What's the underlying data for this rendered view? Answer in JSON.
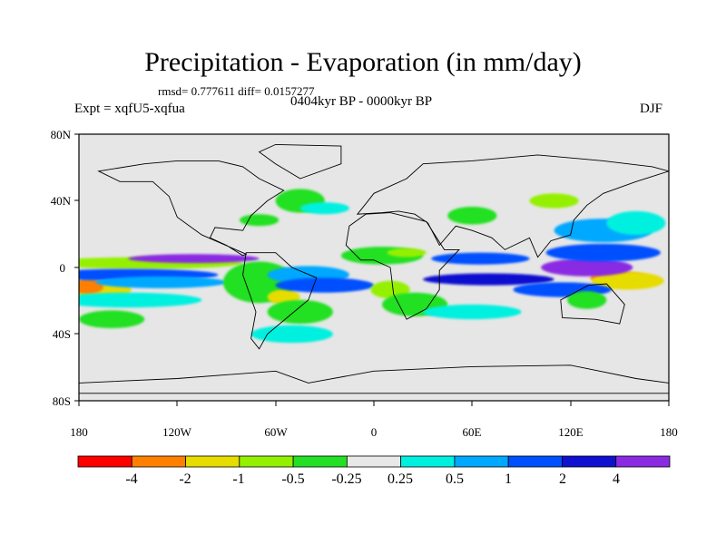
{
  "header": {
    "title": "Precipitation - Evaporation (in mm/day)",
    "stats": "rmsd= 0.777611 diff= 0.0157277",
    "experiment": "Expt = xqfU5-xqfua",
    "period": "0404kyr BP - 0000kyr BP",
    "season": "DJF"
  },
  "axes": {
    "lat_labels": [
      "80N",
      "40N",
      "0",
      "40S",
      "80S"
    ],
    "lon_labels": [
      "180",
      "120W",
      "60W",
      "0",
      "60E",
      "120E",
      "180"
    ]
  },
  "colorbar": {
    "colors": [
      "#ff0000",
      "#ff8000",
      "#e6dc00",
      "#94f000",
      "#24e024",
      "#e8e8e8",
      "#00f0e0",
      "#00a8ff",
      "#0050ff",
      "#1010d0",
      "#8a2be2"
    ],
    "labels": [
      "-4",
      "-2",
      "-1",
      "-0.5",
      "-0.25",
      "0.25",
      "0.5",
      "1",
      "2",
      "4"
    ]
  },
  "map": {
    "background_color": "#e6e6e6",
    "fields": [
      {
        "level": 2,
        "lon": -170,
        "lat": -15,
        "w": 22,
        "h": 7
      },
      {
        "level": 1,
        "lon": -175,
        "lat": -13,
        "w": 10,
        "h": 5
      },
      {
        "level": 3,
        "lon": -140,
        "lat": 3,
        "w": 60,
        "h": 4
      },
      {
        "level": 10,
        "lon": -110,
        "lat": 6,
        "w": 40,
        "h": 3
      },
      {
        "level": 8,
        "lon": -150,
        "lat": -5,
        "w": 55,
        "h": 4
      },
      {
        "level": 7,
        "lon": -130,
        "lat": -10,
        "w": 40,
        "h": 4
      },
      {
        "level": 6,
        "lon": -150,
        "lat": -22,
        "w": 45,
        "h": 5
      },
      {
        "level": 4,
        "lon": -160,
        "lat": -35,
        "w": 20,
        "h": 6
      },
      {
        "level": 4,
        "lon": -70,
        "lat": -10,
        "w": 22,
        "h": 14
      },
      {
        "level": 2,
        "lon": -55,
        "lat": -20,
        "w": 10,
        "h": 5
      },
      {
        "level": 4,
        "lon": -45,
        "lat": -30,
        "w": 20,
        "h": 8
      },
      {
        "level": 7,
        "lon": -40,
        "lat": -5,
        "w": 25,
        "h": 6
      },
      {
        "level": 8,
        "lon": -30,
        "lat": -12,
        "w": 30,
        "h": 5
      },
      {
        "level": 6,
        "lon": -50,
        "lat": -45,
        "w": 25,
        "h": 6
      },
      {
        "level": 4,
        "lon": -45,
        "lat": 45,
        "w": 15,
        "h": 8
      },
      {
        "level": 4,
        "lon": -70,
        "lat": 32,
        "w": 12,
        "h": 4
      },
      {
        "level": 6,
        "lon": -30,
        "lat": 40,
        "w": 15,
        "h": 4
      },
      {
        "level": 3,
        "lon": 10,
        "lat": -15,
        "w": 12,
        "h": 6
      },
      {
        "level": 4,
        "lon": 25,
        "lat": -25,
        "w": 20,
        "h": 8
      },
      {
        "level": 4,
        "lon": 5,
        "lat": 8,
        "w": 25,
        "h": 6
      },
      {
        "level": 3,
        "lon": 20,
        "lat": 10,
        "w": 12,
        "h": 3
      },
      {
        "level": 9,
        "lon": 70,
        "lat": -8,
        "w": 40,
        "h": 4
      },
      {
        "level": 8,
        "lon": 65,
        "lat": 6,
        "w": 30,
        "h": 4
      },
      {
        "level": 6,
        "lon": 60,
        "lat": -30,
        "w": 30,
        "h": 5
      },
      {
        "level": 1,
        "lon": 150,
        "lat": -7,
        "w": 18,
        "h": 4
      },
      {
        "level": 2,
        "lon": 155,
        "lat": -9,
        "w": 22,
        "h": 6
      },
      {
        "level": 10,
        "lon": 130,
        "lat": 0,
        "w": 28,
        "h": 6
      },
      {
        "level": 8,
        "lon": 140,
        "lat": 10,
        "w": 35,
        "h": 6
      },
      {
        "level": 7,
        "lon": 140,
        "lat": 25,
        "w": 30,
        "h": 8
      },
      {
        "level": 8,
        "lon": 115,
        "lat": -15,
        "w": 30,
        "h": 5
      },
      {
        "level": 4,
        "lon": 130,
        "lat": -22,
        "w": 12,
        "h": 6
      },
      {
        "level": 3,
        "lon": 110,
        "lat": 45,
        "w": 15,
        "h": 5
      },
      {
        "level": 6,
        "lon": 160,
        "lat": 30,
        "w": 18,
        "h": 8
      },
      {
        "level": 4,
        "lon": 60,
        "lat": 35,
        "w": 15,
        "h": 6
      }
    ],
    "continents": [
      [
        [
          -168,
          65
        ],
        [
          -140,
          70
        ],
        [
          -120,
          72
        ],
        [
          -95,
          72
        ],
        [
          -80,
          68
        ],
        [
          -70,
          60
        ],
        [
          -55,
          52
        ],
        [
          -65,
          45
        ],
        [
          -75,
          35
        ],
        [
          -80,
          25
        ],
        [
          -97,
          27
        ],
        [
          -100,
          20
        ],
        [
          -90,
          15
        ],
        [
          -80,
          8
        ],
        [
          -78,
          9
        ],
        [
          -105,
          22
        ],
        [
          -120,
          34
        ],
        [
          -125,
          48
        ],
        [
          -135,
          58
        ],
        [
          -155,
          58
        ]
      ],
      [
        [
          -45,
          60
        ],
        [
          -20,
          70
        ],
        [
          -20,
          82
        ],
        [
          -60,
          83
        ],
        [
          -70,
          78
        ],
        [
          -60,
          70
        ]
      ],
      [
        [
          -78,
          10
        ],
        [
          -60,
          10
        ],
        [
          -50,
          0
        ],
        [
          -35,
          -7
        ],
        [
          -40,
          -22
        ],
        [
          -52,
          -33
        ],
        [
          -65,
          -45
        ],
        [
          -70,
          -55
        ],
        [
          -75,
          -48
        ],
        [
          -72,
          -30
        ],
        [
          -80,
          -5
        ]
      ],
      [
        [
          -10,
          36
        ],
        [
          -5,
          43
        ],
        [
          0,
          50
        ],
        [
          10,
          55
        ],
        [
          20,
          60
        ],
        [
          30,
          70
        ],
        [
          60,
          72
        ],
        [
          100,
          76
        ],
        [
          140,
          72
        ],
        [
          170,
          68
        ],
        [
          180,
          65
        ],
        [
          160,
          58
        ],
        [
          140,
          50
        ],
        [
          130,
          42
        ],
        [
          122,
          32
        ],
        [
          120,
          22
        ],
        [
          108,
          18
        ],
        [
          100,
          7
        ],
        [
          95,
          20
        ],
        [
          80,
          12
        ],
        [
          72,
          20
        ],
        [
          60,
          25
        ],
        [
          50,
          28
        ],
        [
          40,
          15
        ],
        [
          33,
          30
        ],
        [
          25,
          36
        ],
        [
          15,
          38
        ],
        [
          5,
          37
        ]
      ],
      [
        [
          -17,
          15
        ],
        [
          -15,
          28
        ],
        [
          -5,
          36
        ],
        [
          10,
          37
        ],
        [
          32,
          31
        ],
        [
          43,
          12
        ],
        [
          52,
          12
        ],
        [
          40,
          -2
        ],
        [
          40,
          -15
        ],
        [
          32,
          -28
        ],
        [
          20,
          -35
        ],
        [
          12,
          -18
        ],
        [
          10,
          0
        ],
        [
          0,
          5
        ],
        [
          -8,
          5
        ]
      ],
      [
        [
          114,
          -22
        ],
        [
          115,
          -34
        ],
        [
          135,
          -35
        ],
        [
          150,
          -38
        ],
        [
          153,
          -25
        ],
        [
          142,
          -11
        ],
        [
          131,
          -12
        ]
      ],
      [
        [
          -180,
          -78
        ],
        [
          -120,
          -75
        ],
        [
          -60,
          -70
        ],
        [
          -40,
          -78
        ],
        [
          0,
          -70
        ],
        [
          60,
          -67
        ],
        [
          120,
          -66
        ],
        [
          160,
          -75
        ],
        [
          180,
          -78
        ],
        [
          180,
          -85
        ],
        [
          -180,
          -85
        ]
      ]
    ]
  }
}
